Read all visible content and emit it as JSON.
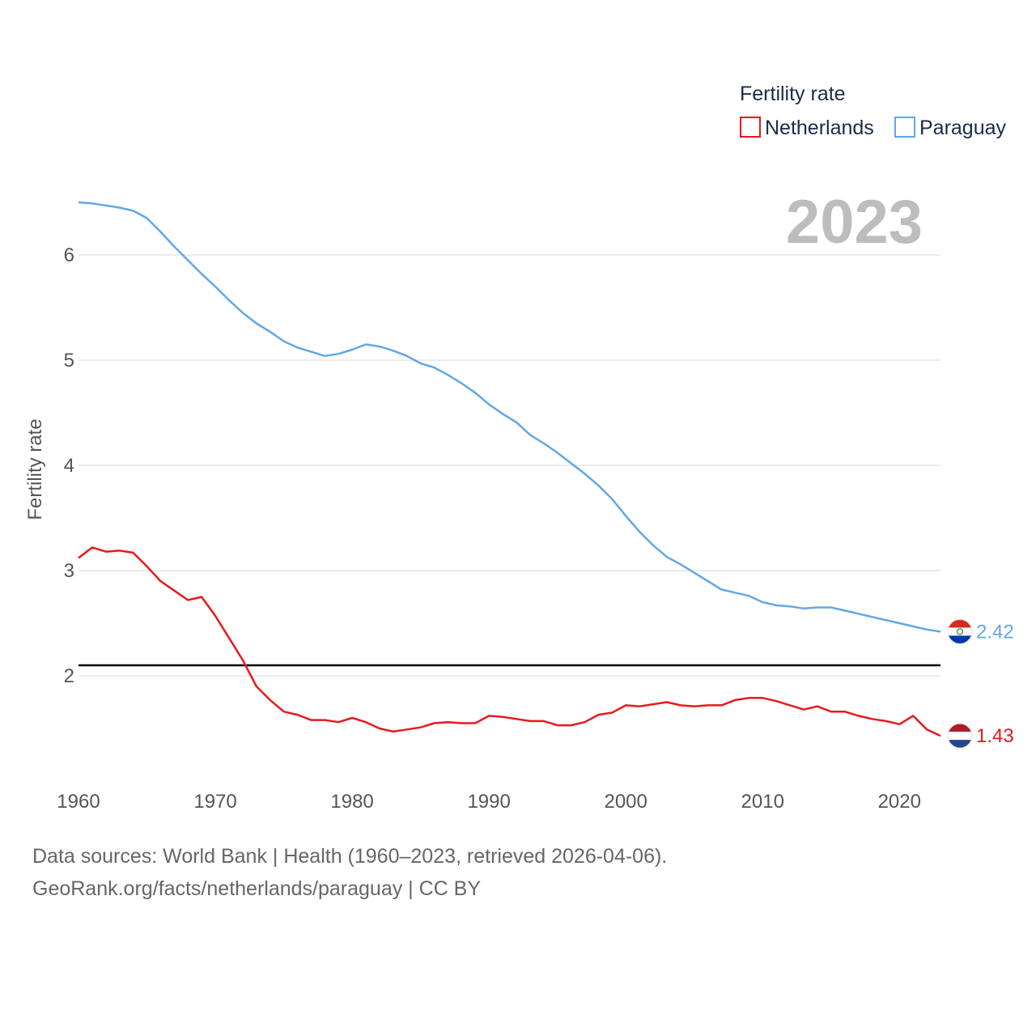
{
  "chart_data": {
    "type": "line",
    "title": "Fertility rate",
    "ylabel": "Fertility rate",
    "xlabel": "",
    "year_display": "2023",
    "xlim": [
      1960,
      2023
    ],
    "ylim": [
      1.0,
      7.0
    ],
    "x_ticks": [
      1960,
      1970,
      1980,
      1990,
      2000,
      2010,
      2020
    ],
    "y_ticks": [
      2,
      3,
      4,
      5,
      6
    ],
    "reference_line": {
      "value": 2.1,
      "color": "#000000"
    },
    "x": [
      1960,
      1961,
      1962,
      1963,
      1964,
      1965,
      1966,
      1967,
      1968,
      1969,
      1970,
      1971,
      1972,
      1973,
      1974,
      1975,
      1976,
      1977,
      1978,
      1979,
      1980,
      1981,
      1982,
      1983,
      1984,
      1985,
      1986,
      1987,
      1988,
      1989,
      1990,
      1991,
      1992,
      1993,
      1994,
      1995,
      1996,
      1997,
      1998,
      1999,
      2000,
      2001,
      2002,
      2003,
      2004,
      2005,
      2006,
      2007,
      2008,
      2009,
      2010,
      2011,
      2012,
      2013,
      2014,
      2015,
      2016,
      2017,
      2018,
      2019,
      2020,
      2021,
      2022,
      2023
    ],
    "series": [
      {
        "name": "Netherlands",
        "color": "#e8191d",
        "end_label": "1.43",
        "values": [
          3.12,
          3.22,
          3.18,
          3.19,
          3.17,
          3.04,
          2.9,
          2.81,
          2.72,
          2.75,
          2.57,
          2.36,
          2.15,
          1.9,
          1.77,
          1.66,
          1.63,
          1.58,
          1.58,
          1.56,
          1.6,
          1.56,
          1.5,
          1.47,
          1.49,
          1.51,
          1.55,
          1.56,
          1.55,
          1.55,
          1.62,
          1.61,
          1.59,
          1.57,
          1.57,
          1.53,
          1.53,
          1.56,
          1.63,
          1.65,
          1.72,
          1.71,
          1.73,
          1.75,
          1.72,
          1.71,
          1.72,
          1.72,
          1.77,
          1.79,
          1.79,
          1.76,
          1.72,
          1.68,
          1.71,
          1.66,
          1.66,
          1.62,
          1.59,
          1.57,
          1.54,
          1.62,
          1.49,
          1.43
        ]
      },
      {
        "name": "Paraguay",
        "color": "#62a8e5",
        "end_label": "2.42",
        "values": [
          6.5,
          6.49,
          6.47,
          6.45,
          6.42,
          6.35,
          6.22,
          6.08,
          5.95,
          5.82,
          5.7,
          5.57,
          5.45,
          5.35,
          5.27,
          5.18,
          5.12,
          5.08,
          5.04,
          5.06,
          5.1,
          5.15,
          5.13,
          5.09,
          5.04,
          4.97,
          4.93,
          4.86,
          4.78,
          4.69,
          4.58,
          4.49,
          4.41,
          4.29,
          4.21,
          4.12,
          4.02,
          3.92,
          3.81,
          3.68,
          3.52,
          3.37,
          3.24,
          3.13,
          3.06,
          2.98,
          2.9,
          2.82,
          2.79,
          2.76,
          2.7,
          2.67,
          2.66,
          2.64,
          2.65,
          2.65,
          2.62,
          2.59,
          2.56,
          2.53,
          2.5,
          2.47,
          2.44,
          2.42
        ]
      }
    ]
  },
  "footer": {
    "line1": "Data sources: World Bank | Health (1960–2023, retrieved 2026-04-06).",
    "line2": "GeoRank.org/facts/netherlands/paraguay | CC BY"
  },
  "flags": {
    "netherlands": {
      "top": "#ae1c28",
      "middle": "#ffffff",
      "bottom": "#21468b"
    },
    "paraguay": {
      "top": "#d52b1e",
      "middle": "#ffffff",
      "bottom": "#0038a8",
      "emblem": "#4a8f3c"
    }
  }
}
